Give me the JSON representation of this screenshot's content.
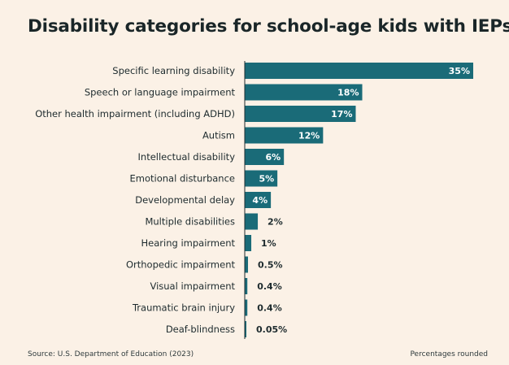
{
  "title": "Disability categories for school-age kids with IEPs",
  "source": "Source: U.S. Department of Education (2023)",
  "note": "Percentages rounded",
  "colors": {
    "bar": "#1a6b78",
    "background": "#fbf1e6",
    "text": "#1e2b2e"
  },
  "chart_data": {
    "type": "bar",
    "orientation": "horizontal",
    "categories": [
      "Specific learning disability",
      "Speech or language impairment",
      "Other health impairment (including ADHD)",
      "Autism",
      "Intellectual disability",
      "Emotional disturbance",
      "Developmental delay",
      "Multiple disabilities",
      "Hearing impairment",
      "Orthopedic impairment",
      "Visual impairment",
      "Traumatic brain injury",
      "Deaf-blindness"
    ],
    "values": [
      35,
      18,
      17,
      12,
      6,
      5,
      4,
      2,
      1,
      0.5,
      0.4,
      0.4,
      0.05
    ],
    "labels": [
      "35%",
      "18%",
      "17%",
      "12%",
      "6%",
      "5%",
      "4%",
      "2%",
      "1%",
      "0.5%",
      "0.4%",
      "0.4%",
      "0.05%"
    ],
    "xlim": [
      0,
      35
    ],
    "grid": false
  }
}
